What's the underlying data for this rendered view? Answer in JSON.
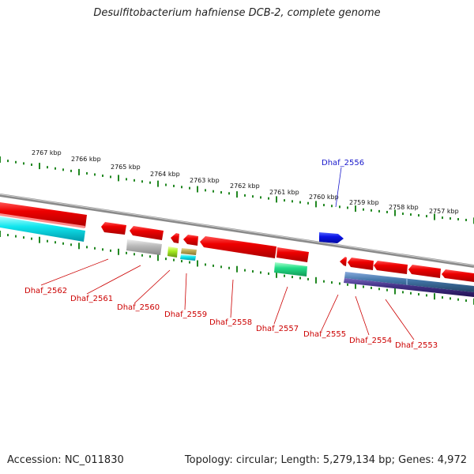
{
  "title": "Desulfitobacterium hafniense DCB-2, complete genome",
  "accession": "Accession: NC_011830",
  "topology": "Topology: circular; Length: 5,279,134 bp; Genes: 4,972",
  "colors": {
    "forward_gene": "#0a14e6",
    "reverse_gene": "#ee0000",
    "backbone": "#8a8a8a",
    "tick": "#228822",
    "reverse_label": "#cc0000",
    "forward_label": "#1a1acc"
  },
  "kbp_labels": [
    "2767 kbp",
    "2766 kbp",
    "2765 kbp",
    "2764 kbp",
    "2763 kbp",
    "2762 kbp",
    "2761 kbp",
    "2760 kbp",
    "2759 kbp",
    "2758 kbp",
    "2757 kbp"
  ],
  "forward_genes": [
    "Dhaf_2556"
  ],
  "reverse_genes": [
    "Dhaf_2562",
    "Dhaf_2561",
    "Dhaf_2560",
    "Dhaf_2559",
    "Dhaf_2558",
    "Dhaf_2557",
    "Dhaf_2555",
    "Dhaf_2554",
    "Dhaf_2553"
  ]
}
